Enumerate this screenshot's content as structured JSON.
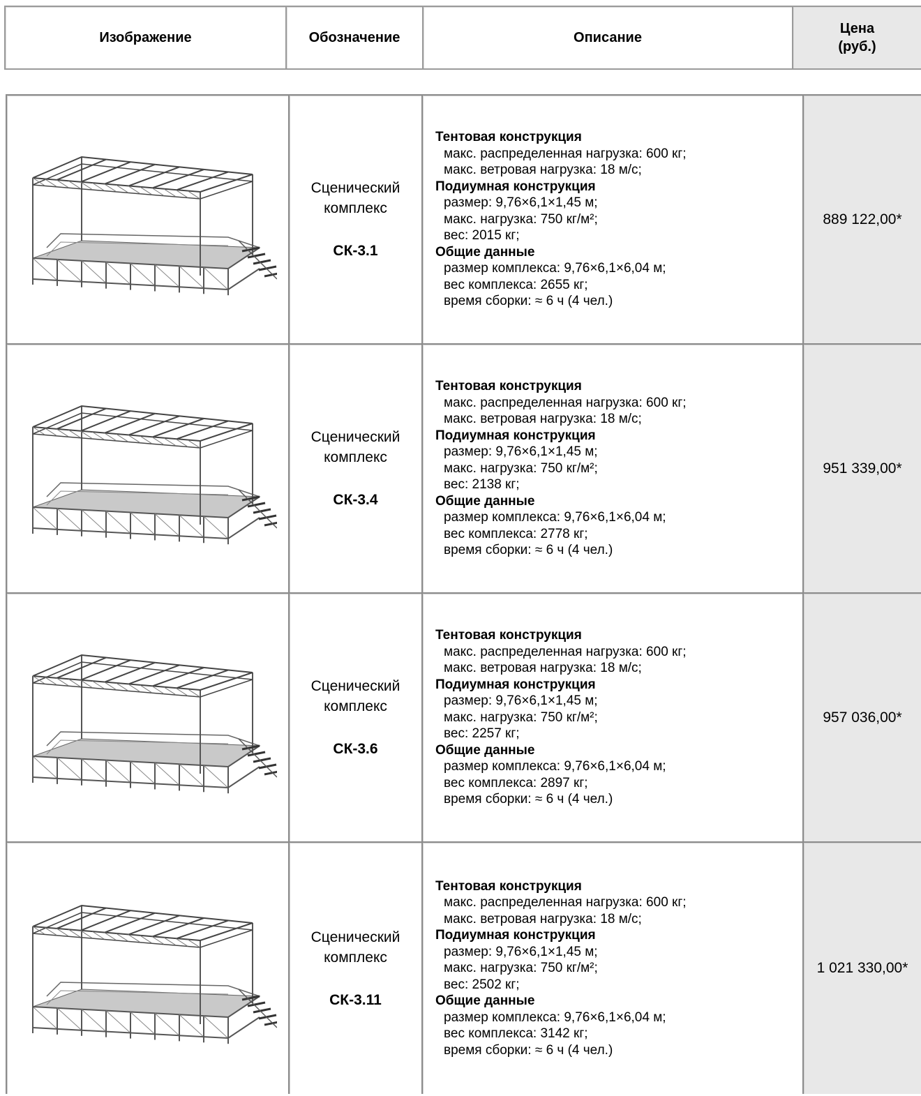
{
  "header": {
    "image": "Изображение",
    "designation": "Обозначение",
    "description": "Описание",
    "price_line1": "Цена",
    "price_line2": "(руб.)"
  },
  "rows": [
    {
      "image_icon": "stage-complex-illustration",
      "name_line1": "Сценический",
      "name_line2": "комплекс",
      "code": "СК-3.1",
      "tent_heading": "Тентовая конструкция",
      "tent_lines": [
        "макс. распределенная нагрузка: 600 кг;",
        "макс. ветровая нагрузка: 18 м/с;"
      ],
      "podium_heading": "Подиумная конструкция",
      "podium_lines": [
        "размер: 9,76×6,1×1,45 м;",
        "макс. нагрузка: 750 кг/м²;",
        "вес: 2015 кг;"
      ],
      "general_heading": "Общие данные",
      "general_lines": [
        "размер комплекса: 9,76×6,1×6,04 м;",
        "вес комплекса: 2655 кг;",
        "время сборки: ≈ 6 ч (4 чел.)"
      ],
      "price": "889 122,00*"
    },
    {
      "image_icon": "stage-complex-illustration",
      "name_line1": "Сценический",
      "name_line2": "комплекс",
      "code": "СК-3.4",
      "tent_heading": "Тентовая конструкция",
      "tent_lines": [
        "макс. распределенная нагрузка: 600 кг;",
        "макс. ветровая нагрузка: 18 м/с;"
      ],
      "podium_heading": "Подиумная конструкция",
      "podium_lines": [
        "размер: 9,76×6,1×1,45 м;",
        "макс. нагрузка: 750 кг/м²;",
        "вес: 2138 кг;"
      ],
      "general_heading": "Общие данные",
      "general_lines": [
        "размер комплекса: 9,76×6,1×6,04 м;",
        "вес комплекса: 2778 кг;",
        "время сборки: ≈ 6 ч (4 чел.)"
      ],
      "price": "951 339,00*"
    },
    {
      "image_icon": "stage-complex-illustration",
      "name_line1": "Сценический",
      "name_line2": "комплекс",
      "code": "СК-3.6",
      "tent_heading": "Тентовая конструкция",
      "tent_lines": [
        "макс. распределенная нагрузка: 600 кг;",
        "макс. ветровая нагрузка: 18 м/с;"
      ],
      "podium_heading": "Подиумная конструкция",
      "podium_lines": [
        "размер: 9,76×6,1×1,45 м;",
        "макс. нагрузка: 750 кг/м²;",
        "вес: 2257 кг;"
      ],
      "general_heading": "Общие данные",
      "general_lines": [
        "размер комплекса: 9,76×6,1×6,04 м;",
        "вес комплекса: 2897 кг;",
        "время сборки: ≈ 6 ч (4 чел.)"
      ],
      "price": "957 036,00*"
    },
    {
      "image_icon": "stage-complex-illustration",
      "name_line1": "Сценический",
      "name_line2": "комплекс",
      "code": "СК-3.11",
      "tent_heading": "Тентовая конструкция",
      "tent_lines": [
        "макс. распределенная нагрузка: 600 кг;",
        "макс. ветровая нагрузка: 18 м/с;"
      ],
      "podium_heading": "Подиумная конструкция",
      "podium_lines": [
        "размер: 9,76×6,1×1,45 м;",
        "макс. нагрузка: 750 кг/м²;",
        "вес: 2502 кг;"
      ],
      "general_heading": "Общие данные",
      "general_lines": [
        "размер комплекса: 9,76×6,1×6,04 м;",
        "вес комплекса: 3142 кг;",
        "время сборки: ≈ 6 ч (4 чел.)"
      ],
      "price": "1 021 330,00*"
    }
  ]
}
